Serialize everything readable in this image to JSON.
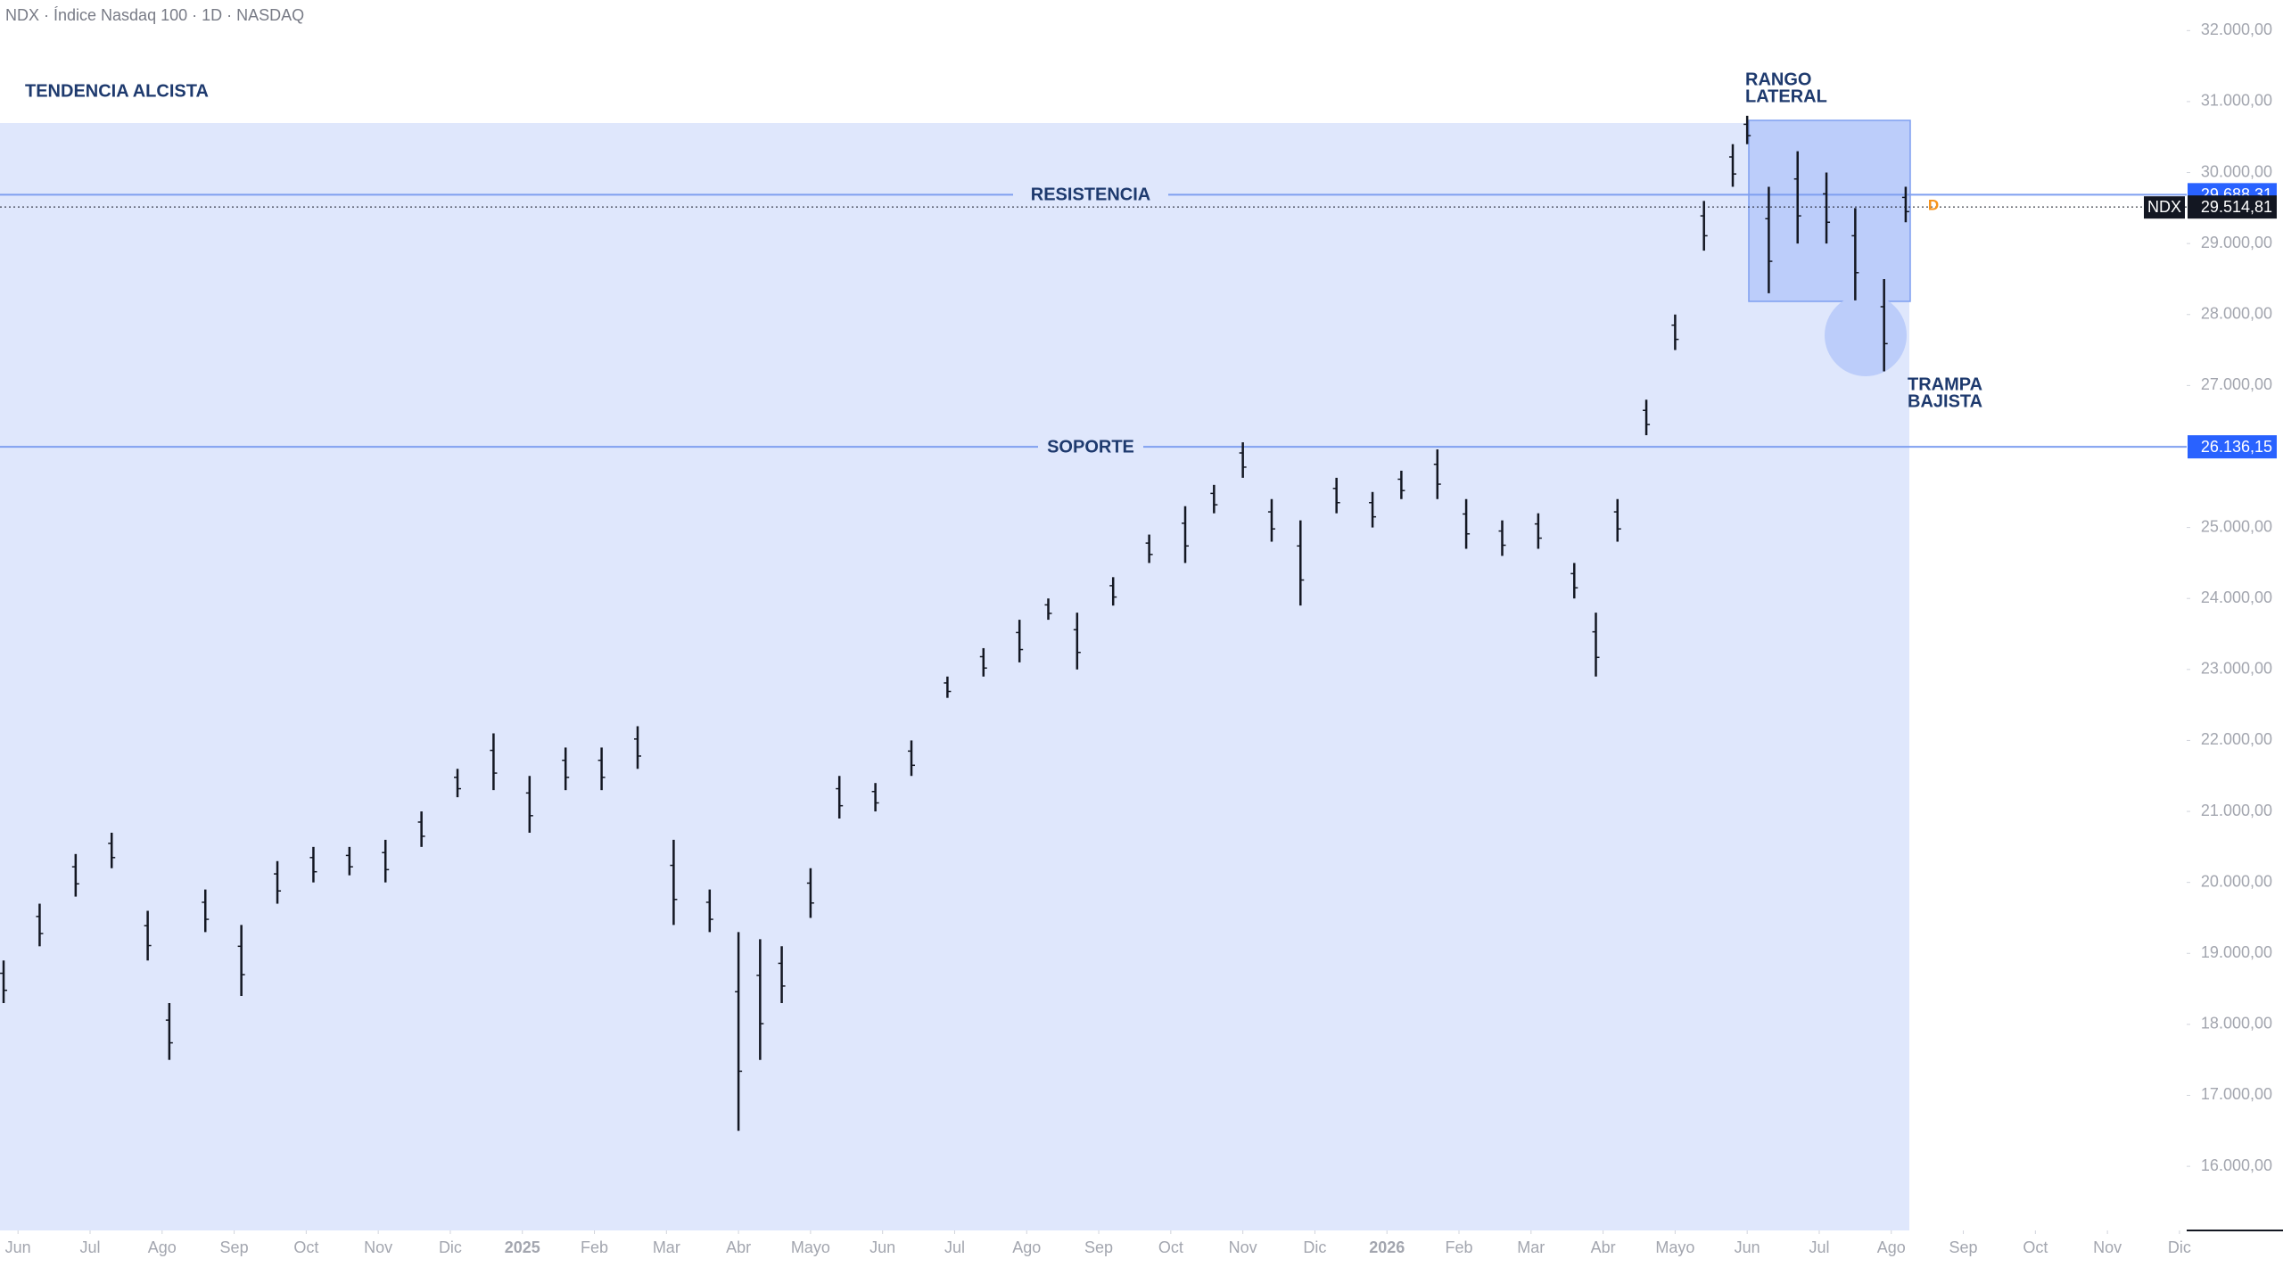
{
  "chart_data": {
    "type": "ohlc",
    "title": "NDX · Índice Nasdaq 100 · 1D · NASDAQ",
    "symbol": "NDX",
    "color": "#131722",
    "x": [
      -0.2,
      0.3,
      0.8,
      1.3,
      1.8,
      2.1,
      2.6,
      3.1,
      3.6,
      4.1,
      4.6,
      5.1,
      5.6,
      6.1,
      6.6,
      7.1,
      7.6,
      8.1,
      8.6,
      9.1,
      9.6,
      10.0,
      10.3,
      10.6,
      11.0,
      11.4,
      11.9,
      12.4,
      12.9,
      13.4,
      13.9,
      14.3,
      14.7,
      15.2,
      15.7,
      16.2,
      16.6,
      17.0,
      17.4,
      17.8,
      18.3,
      18.8,
      19.2,
      19.7,
      20.1,
      20.6,
      21.1,
      21.6,
      21.9,
      22.2,
      22.6,
      23.0,
      23.4,
      23.8,
      24.0,
      24.3,
      24.7,
      25.1,
      25.5,
      25.9,
      26.2
    ],
    "highs": [
      18900,
      19700,
      20400,
      20700,
      19600,
      18300,
      19900,
      19400,
      20300,
      20500,
      20500,
      20600,
      21000,
      21600,
      22100,
      21500,
      21900,
      21900,
      22200,
      20600,
      19900,
      19300,
      19200,
      19100,
      20200,
      21500,
      21400,
      22000,
      22900,
      23300,
      23700,
      24000,
      23800,
      24300,
      24900,
      25300,
      25600,
      26200,
      25400,
      25100,
      25700,
      25500,
      25800,
      26100,
      25400,
      25100,
      25200,
      24500,
      23800,
      25400,
      26800,
      28000,
      29600,
      30400,
      30800,
      29800,
      30300,
      30000,
      29500,
      28500,
      29800
    ],
    "lows": [
      18300,
      19100,
      19800,
      20200,
      18900,
      17500,
      19300,
      18400,
      19700,
      20000,
      20100,
      20000,
      20500,
      21200,
      21300,
      20700,
      21300,
      21300,
      21600,
      19400,
      19300,
      16500,
      17500,
      18300,
      19500,
      20900,
      21000,
      21500,
      22600,
      22900,
      23100,
      23700,
      23000,
      23900,
      24500,
      24500,
      25200,
      25700,
      24800,
      23900,
      25200,
      25000,
      25400,
      25400,
      24700,
      24600,
      24700,
      24000,
      22900,
      24800,
      26300,
      27500,
      28900,
      29800,
      30400,
      28300,
      29000,
      29000,
      28200,
      27200,
      29300
    ],
    "xlim": [
      -0.25,
      30.1
    ],
    "xticks": [
      {
        "value": 0,
        "label": "Jun"
      },
      {
        "value": 1,
        "label": "Jul"
      },
      {
        "value": 2,
        "label": "Ago"
      },
      {
        "value": 3,
        "label": "Sep"
      },
      {
        "value": 4,
        "label": "Oct"
      },
      {
        "value": 5,
        "label": "Nov"
      },
      {
        "value": 6,
        "label": "Dic"
      },
      {
        "value": 7,
        "label": "2025"
      },
      {
        "value": 8,
        "label": "Feb"
      },
      {
        "value": 9,
        "label": "Mar"
      },
      {
        "value": 10,
        "label": "Abr"
      },
      {
        "value": 11,
        "label": "Mayo"
      },
      {
        "value": 12,
        "label": "Jun"
      },
      {
        "value": 13,
        "label": "Jul"
      },
      {
        "value": 14,
        "label": "Ago"
      },
      {
        "value": 15,
        "label": "Sep"
      },
      {
        "value": 16,
        "label": "Oct"
      },
      {
        "value": 17,
        "label": "Nov"
      },
      {
        "value": 18,
        "label": "Dic"
      },
      {
        "value": 19,
        "label": "2026"
      },
      {
        "value": 20,
        "label": "Feb"
      },
      {
        "value": 21,
        "label": "Mar"
      },
      {
        "value": 22,
        "label": "Abr"
      },
      {
        "value": 23,
        "label": "Mayo"
      },
      {
        "value": 24,
        "label": "Jun"
      },
      {
        "value": 25,
        "label": "Jul"
      },
      {
        "value": 26,
        "label": "Ago"
      },
      {
        "value": 27,
        "label": "Sep"
      },
      {
        "value": 28,
        "label": "Oct"
      },
      {
        "value": 29,
        "label": "Nov"
      },
      {
        "value": 30,
        "label": "Dic"
      }
    ],
    "ylim": [
      15097,
      32431
    ],
    "yticks": [
      {
        "value": 16000,
        "label": "16.000,00"
      },
      {
        "value": 17000,
        "label": "17.000,00"
      },
      {
        "value": 18000,
        "label": "18.000,00"
      },
      {
        "value": 19000,
        "label": "19.000,00"
      },
      {
        "value": 20000,
        "label": "20.000,00"
      },
      {
        "value": 21000,
        "label": "21.000,00"
      },
      {
        "value": 22000,
        "label": "22.000,00"
      },
      {
        "value": 23000,
        "label": "23.000,00"
      },
      {
        "value": 24000,
        "label": "24.000,00"
      },
      {
        "value": 25000,
        "label": "25.000,00"
      },
      {
        "value": 27000,
        "label": "27.000,00"
      },
      {
        "value": 28000,
        "label": "28.000,00"
      },
      {
        "value": 29000,
        "label": "29.000,00"
      },
      {
        "value": 30000,
        "label": "30.000,00"
      },
      {
        "value": 31000,
        "label": "31.000,00"
      },
      {
        "value": 32000,
        "label": "32.000,00"
      }
    ],
    "levels": [
      {
        "name": "RESISTENCIA",
        "value": 29688.31,
        "label": "29.688,31"
      },
      {
        "name": "SOPORTE",
        "value": 26136.15,
        "label": "26.136,15"
      }
    ],
    "last_price": {
      "value": 29514.81,
      "label": "29.514,81"
    },
    "marker": "D",
    "trend_label": "TENDENCIA ALCISTA",
    "range_label": [
      "RANGO",
      "LATERAL"
    ],
    "trap_label": [
      "TRAMPA",
      "BAJISTA"
    ]
  }
}
